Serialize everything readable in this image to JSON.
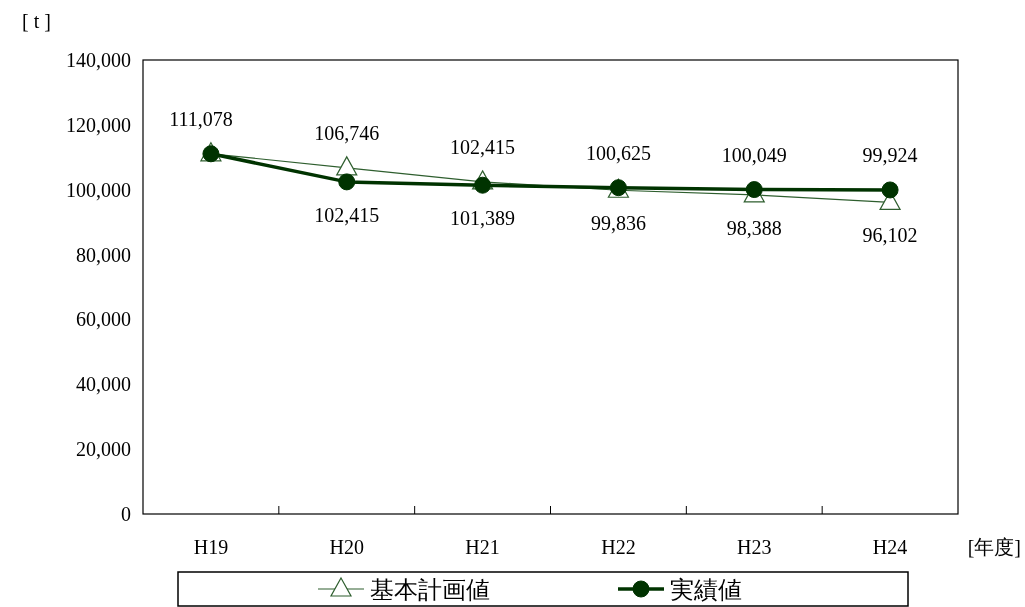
{
  "chart_data": {
    "type": "line",
    "xlabel": "[年度]",
    "ylabel": "[ t ]",
    "categories": [
      "H19",
      "H20",
      "H21",
      "H22",
      "H23",
      "H24"
    ],
    "ylim": [
      0,
      140000
    ],
    "yticks": [
      {
        "value": 0,
        "label": "0"
      },
      {
        "value": 20000,
        "label": "20,000"
      },
      {
        "value": 40000,
        "label": "40,000"
      },
      {
        "value": 60000,
        "label": "60,000"
      },
      {
        "value": 80000,
        "label": "80,000"
      },
      {
        "value": 100000,
        "label": "100,000"
      },
      {
        "value": 120000,
        "label": "120,000"
      },
      {
        "value": 140000,
        "label": "140,000"
      }
    ],
    "series": [
      {
        "name": "基本計画値",
        "color": "#2e5e2e",
        "marker": "triangle",
        "values": [
          111078,
          106746,
          102415,
          99836,
          98388,
          96102
        ],
        "value_labels": [
          null,
          "106,746",
          "102,415",
          "99,836",
          "98,388",
          "96,102"
        ]
      },
      {
        "name": "実績値",
        "color": "#003300",
        "marker": "circle",
        "values": [
          111078,
          102415,
          101389,
          100625,
          100049,
          99924
        ],
        "value_labels": [
          "111,078",
          "102,415",
          "101,389",
          "100,625",
          "100,049",
          "99,924"
        ]
      }
    ],
    "legend": "bottom",
    "grid": false
  }
}
